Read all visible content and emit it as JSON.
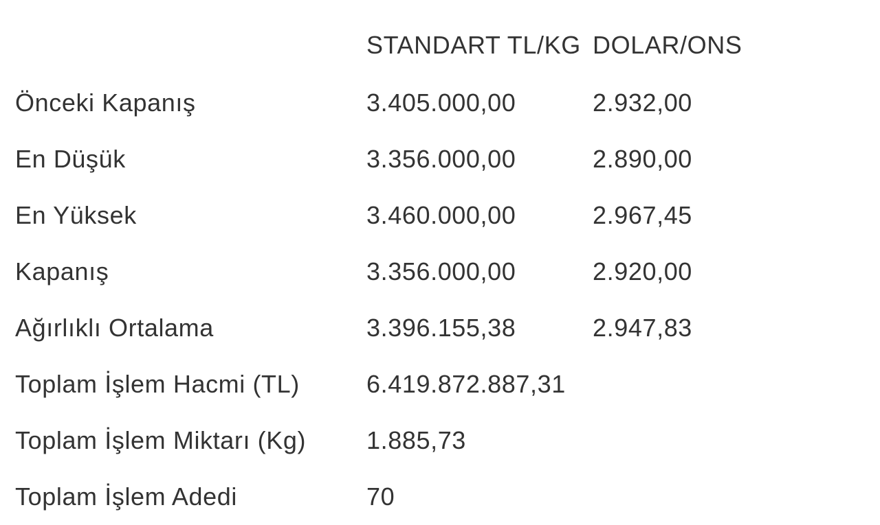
{
  "header": {
    "label": "",
    "col_standart": "STANDART TL/KG",
    "col_dolar": "DOLAR/ONS"
  },
  "rows": [
    {
      "label": "Önceki Kapanış",
      "standart": "3.405.000,00",
      "dolar": "2.932,00"
    },
    {
      "label": "En Düşük",
      "standart": "3.356.000,00",
      "dolar": "2.890,00"
    },
    {
      "label": "En Yüksek",
      "standart": "3.460.000,00",
      "dolar": "2.967,45"
    },
    {
      "label": "Kapanış",
      "standart": "3.356.000,00",
      "dolar": "2.920,00"
    },
    {
      "label": "Ağırlıklı Ortalama",
      "standart": "3.396.155,38",
      "dolar": "2.947,83"
    },
    {
      "label": "Toplam İşlem Hacmi (TL)",
      "standart": "6.419.872.887,31",
      "dolar": ""
    },
    {
      "label": "Toplam İşlem Miktarı (Kg)",
      "standart": "1.885,73",
      "dolar": ""
    },
    {
      "label": "Toplam İşlem Adedi",
      "standart": "70",
      "dolar": ""
    }
  ]
}
